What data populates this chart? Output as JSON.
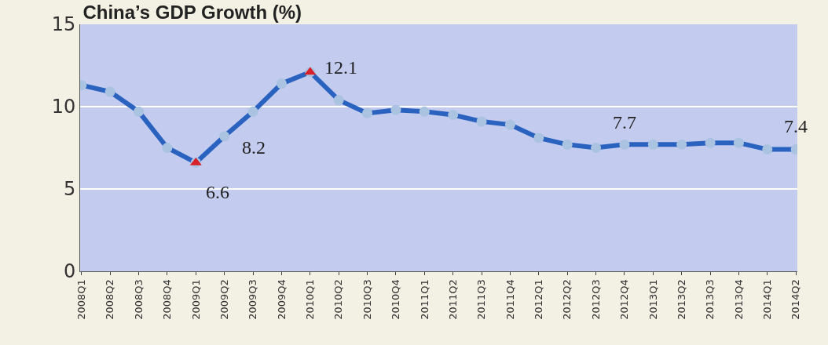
{
  "chart_data": {
    "type": "line",
    "title": "China’s GDP Growth (%)",
    "categories": [
      "2008Q1",
      "2008Q2",
      "2008Q3",
      "2008Q4",
      "2009Q1",
      "2009Q2",
      "2009Q3",
      "2009Q4",
      "2010Q1",
      "2010Q2",
      "2010Q3",
      "2010Q4",
      "2011Q1",
      "2011Q2",
      "2011Q3",
      "2011Q4",
      "2012Q1",
      "2012Q2",
      "2012Q3",
      "2012Q4",
      "2013Q1",
      "2013Q2",
      "2013Q3",
      "2013Q4",
      "2014Q1",
      "2014Q2"
    ],
    "series": [
      {
        "color": "#2a62c0",
        "marker": "circle",
        "values": [
          11.3,
          10.9,
          9.7,
          7.5,
          6.6,
          8.2,
          9.7,
          11.4,
          12.1,
          10.4,
          9.6,
          9.8,
          9.7,
          9.5,
          9.1,
          8.9,
          8.1,
          7.7,
          7.5,
          7.7,
          7.7,
          7.7,
          7.8,
          7.8,
          7.4,
          7.4
        ]
      },
      {
        "type": "scatter",
        "color": "#d8202a",
        "marker": "triangle",
        "x": [
          "2009Q1",
          "2010Q1"
        ],
        "values": [
          6.6,
          12.1
        ]
      }
    ],
    "ylim": [
      0,
      15
    ],
    "yticks": [
      0,
      5,
      10,
      15
    ],
    "grid": "y",
    "line_style": "solid",
    "annotations": [
      {
        "text": "6.6",
        "x": "2009Q1",
        "y": 6.6
      },
      {
        "text": "8.2",
        "x": "2009Q2",
        "y": 8.2
      },
      {
        "text": "12.1",
        "x": "2010Q1",
        "y": 12.1
      },
      {
        "text": "7.7",
        "x": "2012Q4",
        "y": 7.7
      },
      {
        "text": "7.4",
        "x": "2014Q2",
        "y": 7.4
      }
    ]
  }
}
